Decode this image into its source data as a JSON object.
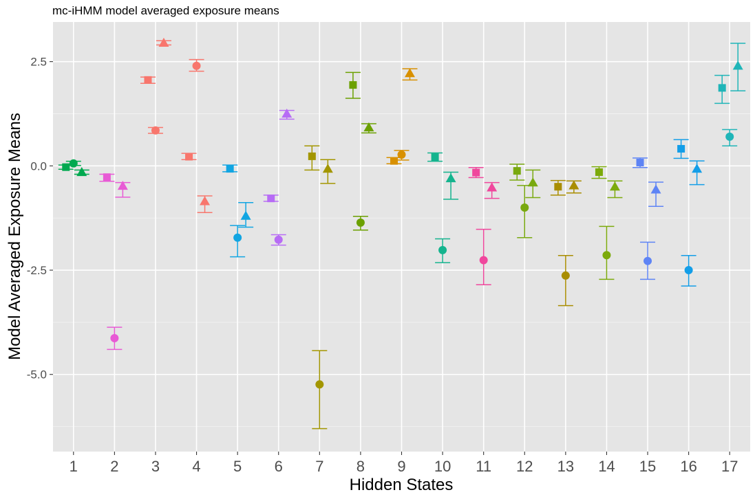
{
  "chart_data": {
    "type": "scatter",
    "title": "mc-iHMM model averaged exposure means",
    "xlabel": "Hidden States",
    "ylabel": "Model Averaged Exposure Means",
    "x_categories": [
      "1",
      "2",
      "3",
      "4",
      "5",
      "6",
      "7",
      "8",
      "9",
      "10",
      "11",
      "12",
      "13",
      "14",
      "15",
      "16",
      "17"
    ],
    "y_ticks": [
      2.5,
      0.0,
      -2.5,
      -5.0
    ],
    "y_tick_labels": [
      "2.5",
      "0.0",
      "-2.5",
      "-5.0"
    ],
    "ylim": [
      -6.85,
      3.45
    ],
    "grid": true,
    "legend": "none",
    "marker_shapes": [
      "square",
      "circle",
      "triangle"
    ],
    "state_colors": [
      "#00A94F",
      "#E85AD5",
      "#F8766D",
      "#F8766D",
      "#11A5E2",
      "#B76CF5",
      "#A39600",
      "#6BA000",
      "#D89000",
      "#14B48E",
      "#F0479D",
      "#79A90F",
      "#A98D00",
      "#7CAA0B",
      "#5E84F5",
      "#139EE8",
      "#1FB5B8"
    ],
    "points": [
      {
        "state": 1,
        "shape": "square",
        "y": -0.03,
        "lower": -0.08,
        "upper": 0.02
      },
      {
        "state": 1,
        "shape": "circle",
        "y": 0.06,
        "lower": 0.01,
        "upper": 0.11
      },
      {
        "state": 1,
        "shape": "triangle",
        "y": -0.15,
        "lower": -0.2,
        "upper": -0.1
      },
      {
        "state": 2,
        "shape": "square",
        "y": -0.27,
        "lower": -0.37,
        "upper": -0.2
      },
      {
        "state": 2,
        "shape": "circle",
        "y": -4.13,
        "lower": -4.4,
        "upper": -3.87
      },
      {
        "state": 2,
        "shape": "triangle",
        "y": -0.48,
        "lower": -0.75,
        "upper": -0.4
      },
      {
        "state": 3,
        "shape": "square",
        "y": 2.06,
        "lower": 1.98,
        "upper": 2.13
      },
      {
        "state": 3,
        "shape": "circle",
        "y": 0.85,
        "lower": 0.78,
        "upper": 0.92
      },
      {
        "state": 3,
        "shape": "triangle",
        "y": 2.95,
        "lower": 2.9,
        "upper": 3.0
      },
      {
        "state": 4,
        "shape": "square",
        "y": 0.22,
        "lower": 0.15,
        "upper": 0.3
      },
      {
        "state": 4,
        "shape": "circle",
        "y": 2.4,
        "lower": 2.27,
        "upper": 2.55
      },
      {
        "state": 4,
        "shape": "triangle",
        "y": -0.85,
        "lower": -1.12,
        "upper": -0.72
      },
      {
        "state": 5,
        "shape": "square",
        "y": -0.07,
        "lower": -0.14,
        "upper": 0.02
      },
      {
        "state": 5,
        "shape": "circle",
        "y": -1.72,
        "lower": -2.18,
        "upper": -1.43
      },
      {
        "state": 5,
        "shape": "triangle",
        "y": -1.2,
        "lower": -1.47,
        "upper": -0.88
      },
      {
        "state": 6,
        "shape": "square",
        "y": -0.78,
        "lower": -0.85,
        "upper": -0.7
      },
      {
        "state": 6,
        "shape": "circle",
        "y": -1.77,
        "lower": -1.9,
        "upper": -1.65
      },
      {
        "state": 6,
        "shape": "triangle",
        "y": 1.25,
        "lower": 1.12,
        "upper": 1.33
      },
      {
        "state": 7,
        "shape": "square",
        "y": 0.23,
        "lower": -0.1,
        "upper": 0.48
      },
      {
        "state": 7,
        "shape": "circle",
        "y": -5.24,
        "lower": -6.3,
        "upper": -4.43
      },
      {
        "state": 7,
        "shape": "triangle",
        "y": -0.07,
        "lower": -0.42,
        "upper": 0.15
      },
      {
        "state": 8,
        "shape": "square",
        "y": 1.94,
        "lower": 1.62,
        "upper": 2.24
      },
      {
        "state": 8,
        "shape": "circle",
        "y": -1.36,
        "lower": -1.54,
        "upper": -1.21
      },
      {
        "state": 8,
        "shape": "triangle",
        "y": 0.92,
        "lower": 0.79,
        "upper": 1.01
      },
      {
        "state": 9,
        "shape": "square",
        "y": 0.12,
        "lower": 0.05,
        "upper": 0.2
      },
      {
        "state": 9,
        "shape": "circle",
        "y": 0.27,
        "lower": 0.14,
        "upper": 0.37
      },
      {
        "state": 9,
        "shape": "triangle",
        "y": 2.22,
        "lower": 2.06,
        "upper": 2.33
      },
      {
        "state": 10,
        "shape": "square",
        "y": 0.21,
        "lower": 0.11,
        "upper": 0.31
      },
      {
        "state": 10,
        "shape": "circle",
        "y": -2.02,
        "lower": -2.32,
        "upper": -1.75
      },
      {
        "state": 10,
        "shape": "triangle",
        "y": -0.3,
        "lower": -0.8,
        "upper": -0.15
      },
      {
        "state": 11,
        "shape": "square",
        "y": -0.16,
        "lower": -0.28,
        "upper": -0.04
      },
      {
        "state": 11,
        "shape": "circle",
        "y": -2.26,
        "lower": -2.85,
        "upper": -1.52
      },
      {
        "state": 11,
        "shape": "triangle",
        "y": -0.52,
        "lower": -0.78,
        "upper": -0.4
      },
      {
        "state": 12,
        "shape": "square",
        "y": -0.12,
        "lower": -0.34,
        "upper": 0.04
      },
      {
        "state": 12,
        "shape": "circle",
        "y": -1.0,
        "lower": -1.72,
        "upper": -0.47
      },
      {
        "state": 12,
        "shape": "triangle",
        "y": -0.4,
        "lower": -0.76,
        "upper": -0.1
      },
      {
        "state": 13,
        "shape": "square",
        "y": -0.5,
        "lower": -0.7,
        "upper": -0.35
      },
      {
        "state": 13,
        "shape": "circle",
        "y": -2.63,
        "lower": -3.35,
        "upper": -2.15
      },
      {
        "state": 13,
        "shape": "triangle",
        "y": -0.47,
        "lower": -0.65,
        "upper": -0.36
      },
      {
        "state": 14,
        "shape": "square",
        "y": -0.15,
        "lower": -0.3,
        "upper": -0.02
      },
      {
        "state": 14,
        "shape": "circle",
        "y": -2.14,
        "lower": -2.72,
        "upper": -1.45
      },
      {
        "state": 14,
        "shape": "triangle",
        "y": -0.5,
        "lower": -0.76,
        "upper": -0.36
      },
      {
        "state": 15,
        "shape": "square",
        "y": 0.08,
        "lower": -0.04,
        "upper": 0.19
      },
      {
        "state": 15,
        "shape": "circle",
        "y": -2.28,
        "lower": -2.72,
        "upper": -1.83
      },
      {
        "state": 15,
        "shape": "triangle",
        "y": -0.57,
        "lower": -0.97,
        "upper": -0.39
      },
      {
        "state": 16,
        "shape": "square",
        "y": 0.41,
        "lower": 0.18,
        "upper": 0.63
      },
      {
        "state": 16,
        "shape": "circle",
        "y": -2.5,
        "lower": -2.88,
        "upper": -2.15
      },
      {
        "state": 16,
        "shape": "triangle",
        "y": -0.07,
        "lower": -0.45,
        "upper": 0.12
      },
      {
        "state": 17,
        "shape": "square",
        "y": 1.87,
        "lower": 1.5,
        "upper": 2.17
      },
      {
        "state": 17,
        "shape": "circle",
        "y": 0.7,
        "lower": 0.48,
        "upper": 0.87
      },
      {
        "state": 17,
        "shape": "triangle",
        "y": 2.4,
        "lower": 1.8,
        "upper": 2.94
      }
    ]
  }
}
